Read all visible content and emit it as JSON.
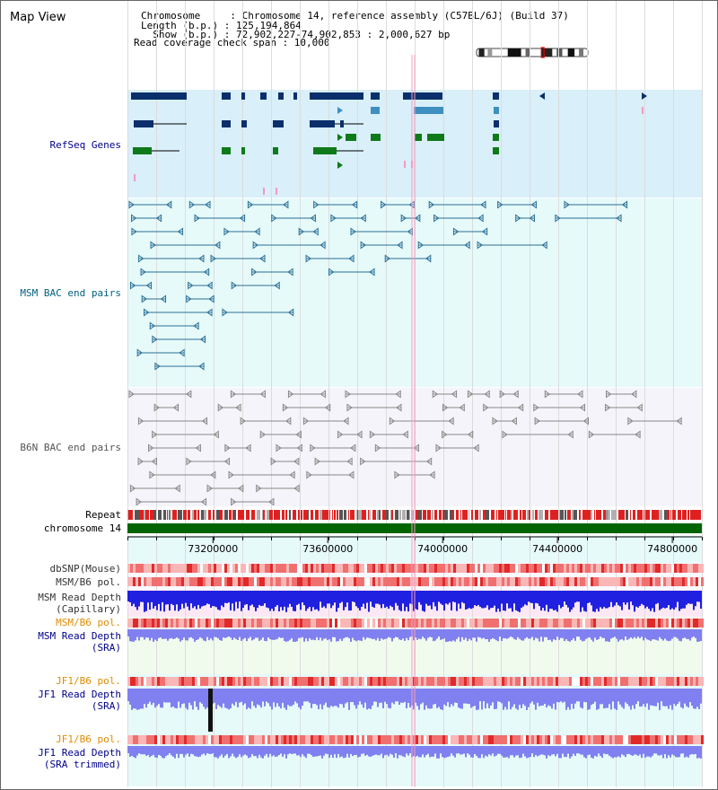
{
  "header": {
    "view_title": "Map View",
    "info_lines": [
      "Chromosome     : Chromosome 14, reference assembly (C57BL/6J) (Build 37)",
      "Length (b.p.) : 125,194,864",
      "  Show (b.p.) : 72,902,227-74,902,853 : 2,000,627 bp",
      "Read coverage check span : 10,000"
    ]
  },
  "genome": {
    "chromosome": "chromosome 14",
    "range_start": 72902227,
    "range_end": 74902853,
    "length": 125194864,
    "visible_start": 72902227,
    "visible_end": 74902853,
    "axis_ticks": [
      "73200000",
      "73600000",
      "74000000",
      "74400000",
      "74800000"
    ]
  },
  "tracks": {
    "refseq": "RefSeq Genes",
    "msm_bac": "MSM BAC end pairs",
    "b6n_bac": "B6N BAC end pairs",
    "repeat": "Repeat",
    "chrom": "chromosome 14",
    "dbsnp": "dbSNP(Mouse)",
    "msm_b6_pol_1": "MSM/B6 pol.",
    "msm_depth_cap_1": "MSM Read Depth",
    "msm_depth_cap_2": "(Capillary)",
    "msm_b6_pol_2": "MSM/B6 pol.",
    "msm_depth_sra_1": "MSM Read Depth",
    "msm_depth_sra_2": "(SRA)",
    "jf1_b6_pol_1": "JF1/B6 pol.",
    "jf1_depth_sra_1": "JF1 Read Depth",
    "jf1_depth_sra_2": "(SRA)",
    "jf1_b6_pol_2": "JF1/B6 pol.",
    "jf1_depth_trim_1": "JF1 Read Depth",
    "jf1_depth_trim_2": "(SRA trimmed)"
  },
  "colors": {
    "refseq_bg": "#d9effa",
    "msm_bg": "#e6fafa",
    "b6n_bg": "#f4f4fa",
    "msm_feature": "#2a6f97",
    "b6n_feature": "#888888",
    "gene_dark": "#0b2f6b",
    "gene_mid": "#3f8fc0",
    "gene_green": "#0e7a1a",
    "chrom_green": "#006400",
    "label_blue": "#00008b",
    "label_orange": "#e08c00",
    "label_teal": "#006080",
    "depth_blue": "#2020e0",
    "depth_light": "#8080f0"
  }
}
